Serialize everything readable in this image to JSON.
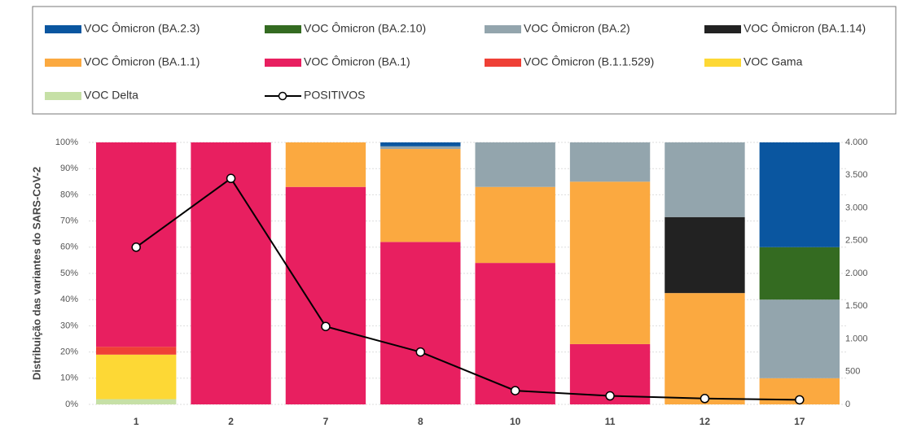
{
  "chart_data": {
    "type": "bar",
    "stacked": true,
    "y_label": "Distribuição das variantes do SARS-CoV-2",
    "categories": [
      "1",
      "2",
      "7",
      "8",
      "10",
      "11",
      "12",
      "17"
    ],
    "series": [
      {
        "name": "VOC Ômicron (BA.2.3)",
        "color": "#0a56a0",
        "values": [
          0,
          0,
          0,
          1.5,
          0,
          0,
          0,
          40
        ]
      },
      {
        "name": "VOC Ômicron (BA.2.10)",
        "color": "#346b21",
        "values": [
          0,
          0,
          0,
          0,
          0,
          0,
          0,
          20
        ]
      },
      {
        "name": "VOC Ômicron (BA.2)",
        "color": "#93a5ad",
        "values": [
          0,
          0,
          0,
          1,
          17,
          15,
          28.5,
          30
        ]
      },
      {
        "name": "VOC Ômicron (BA.1.14)",
        "color": "#222222",
        "values": [
          0,
          0,
          0,
          0,
          0,
          0,
          29,
          0
        ]
      },
      {
        "name": "VOC Ômicron (BA.1.1)",
        "color": "#fba940",
        "values": [
          0,
          0,
          17,
          35.5,
          29,
          62,
          42.5,
          10
        ]
      },
      {
        "name": "VOC Ômicron (BA.1)",
        "color": "#e81f60",
        "values": [
          78,
          100,
          83,
          62,
          54,
          23,
          0,
          0
        ]
      },
      {
        "name": "VOC Ômicron (B.1.1.529)",
        "color": "#ef4036",
        "values": [
          3,
          0,
          0,
          0,
          0,
          0,
          0,
          0
        ]
      },
      {
        "name": "VOC Gama",
        "color": "#fdd835",
        "values": [
          17,
          0,
          0,
          0,
          0,
          0,
          0,
          0
        ]
      },
      {
        "name": "VOC Delta",
        "color": "#c6e0a6",
        "values": [
          2,
          0,
          0,
          0,
          0,
          0,
          0,
          0
        ]
      },
      {
        "name": "POSITIVOS",
        "color": "#000000",
        "type": "line",
        "axis": "y2",
        "values": [
          2400,
          3450,
          1190,
          800,
          210,
          130,
          90,
          70
        ]
      }
    ],
    "ylim": [
      0,
      100
    ],
    "yticks": [
      {
        "value": 0,
        "label": "0%"
      },
      {
        "value": 10,
        "label": "10%"
      },
      {
        "value": 20,
        "label": "20%"
      },
      {
        "value": 30,
        "label": "30%"
      },
      {
        "value": 40,
        "label": "40%"
      },
      {
        "value": 50,
        "label": "50%"
      },
      {
        "value": 60,
        "label": "60%"
      },
      {
        "value": 70,
        "label": "70%"
      },
      {
        "value": 80,
        "label": "80%"
      },
      {
        "value": 90,
        "label": "90%"
      },
      {
        "value": 100,
        "label": "100%"
      }
    ],
    "y2lim": [
      0,
      4000
    ],
    "y2ticks": [
      0,
      500,
      {
        "value": 1000,
        "label": "1.000"
      },
      {
        "value": 1500,
        "label": "1.500"
      },
      {
        "value": 2000,
        "label": "2.000"
      },
      {
        "value": 2500,
        "label": "2.500"
      },
      {
        "value": 3000,
        "label": "3.000"
      },
      {
        "value": 3500,
        "label": "3.500"
      },
      {
        "value": 4000,
        "label": "4.000"
      }
    ],
    "grid": true,
    "legend": "top"
  }
}
